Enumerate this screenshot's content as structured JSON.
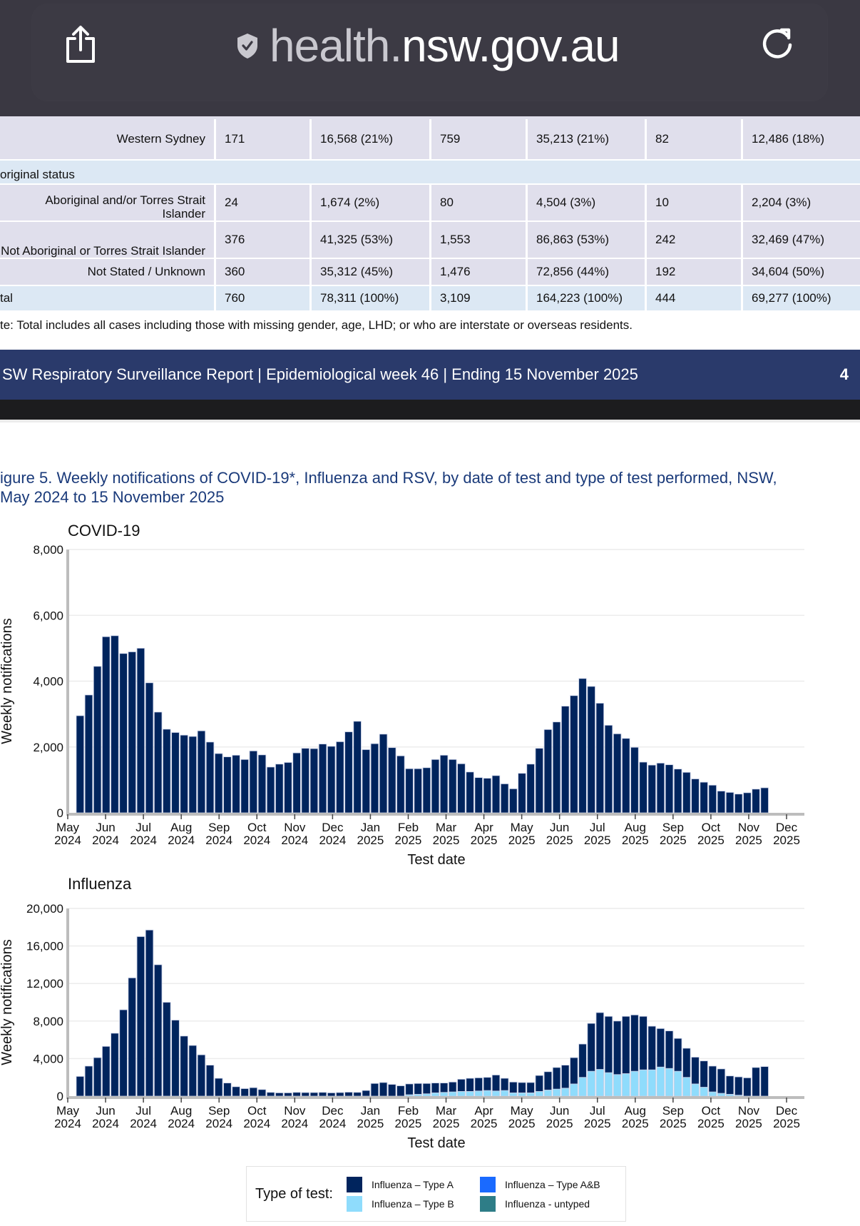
{
  "browser": {
    "url_prefix": "health.",
    "url_domain": "nsw.gov.au",
    "icons": {
      "share": "share-icon",
      "security": "shield-check-icon",
      "reload": "reload-icon"
    }
  },
  "table": {
    "rows": [
      {
        "type": "data",
        "label": "Western Sydney",
        "cols": [
          "171",
          "16,568 (21%)",
          "759",
          "35,213 (21%)",
          "82",
          "12,486 (18%)"
        ]
      },
      {
        "type": "group",
        "label": "original status"
      },
      {
        "type": "data",
        "label": "Aboriginal and/or Torres Strait Islander",
        "cols": [
          "24",
          "1,674 (2%)",
          "80",
          "4,504 (3%)",
          "10",
          "2,204 (3%)"
        ]
      },
      {
        "type": "data",
        "label": "Not Aboriginal or Torres Strait Islander",
        "cols": [
          "376",
          "41,325 (53%)",
          "1,553",
          "86,863 (53%)",
          "242",
          "32,469 (47%)"
        ]
      },
      {
        "type": "data",
        "label": "Not Stated / Unknown",
        "cols": [
          "360",
          "35,312 (45%)",
          "1,476",
          "72,856 (44%)",
          "192",
          "34,604 (50%)"
        ]
      },
      {
        "type": "total",
        "label": "tal",
        "cols": [
          "760",
          "78,311 (100%)",
          "3,109",
          "164,223 (100%)",
          "444",
          "69,277 (100%)"
        ]
      }
    ],
    "note": "te: Total includes all cases including those with missing gender, age, LHD; or who are interstate or overseas residents."
  },
  "report_footer": {
    "title": "SW Respiratory Surveillance Report | Epidemiological week 46 | Ending 15 November 2025",
    "page": "4"
  },
  "figure": {
    "title_line1": "igure 5. Weekly notifications of COVID-19*, Influenza and RSV, by date of test and type of test performed, NSW,",
    "title_line2": " May 2024 to 15 November 2025"
  },
  "chart_data": [
    {
      "type": "bar",
      "title": "COVID-19",
      "xlabel": "Test date",
      "ylabel": "Weekly notifications",
      "ylim": [
        0,
        8000
      ],
      "yticks": [
        "0",
        "2,000",
        "4,000",
        "6,000",
        "8,000"
      ],
      "xticks": [
        "May\n2024",
        "Jun\n2024",
        "Jul\n2024",
        "Aug\n2024",
        "Sep\n2024",
        "Oct\n2024",
        "Nov\n2024",
        "Dec\n2024",
        "Jan\n2025",
        "Feb\n2025",
        "Mar\n2025",
        "Apr\n2025",
        "May\n2025",
        "Jun\n2025",
        "Jul\n2025",
        "Aug\n2025",
        "Sep\n2025",
        "Oct\n2025",
        "Nov\n2025",
        "Dec\n2025"
      ],
      "grid": true,
      "color": "#00245d",
      "values": [
        2950,
        3580,
        4450,
        5350,
        5380,
        4840,
        4890,
        5000,
        3950,
        3060,
        2540,
        2440,
        2360,
        2320,
        2490,
        2150,
        1800,
        1700,
        1750,
        1620,
        1880,
        1760,
        1390,
        1480,
        1530,
        1820,
        1960,
        1950,
        2090,
        2020,
        2160,
        2460,
        2780,
        1920,
        2100,
        2390,
        1980,
        1730,
        1340,
        1340,
        1370,
        1620,
        1750,
        1620,
        1490,
        1240,
        1070,
        1050,
        1130,
        880,
        730,
        1200,
        1480,
        1960,
        2530,
        2760,
        3240,
        3560,
        4080,
        3840,
        3330,
        2660,
        2400,
        2260,
        1990,
        1540,
        1450,
        1510,
        1460,
        1330,
        1230,
        1030,
        930,
        840,
        660,
        620,
        570,
        610,
        720,
        760
      ]
    },
    {
      "type": "bar",
      "stacked": true,
      "title": "Influenza",
      "xlabel": "Test date",
      "ylabel": "Weekly notifications",
      "ylim": [
        0,
        20000
      ],
      "yticks": [
        "0",
        "4,000",
        "8,000",
        "12,000",
        "16,000",
        "20,000"
      ],
      "xticks": [
        "May\n2024",
        "Jun\n2024",
        "Jul\n2024",
        "Aug\n2024",
        "Sep\n2024",
        "Oct\n2024",
        "Nov\n2024",
        "Dec\n2024",
        "Jan\n2025",
        "Feb\n2025",
        "Mar\n2025",
        "Apr\n2025",
        "May\n2025",
        "Jun\n2025",
        "Jul\n2025",
        "Aug\n2025",
        "Sep\n2025",
        "Oct\n2025",
        "Nov\n2025",
        "Dec\n2025"
      ],
      "grid": true,
      "legend_title": "Type of test:",
      "legend_position": "bottom",
      "series": [
        {
          "name": "Influenza – Type A",
          "color": "#00245d",
          "values": [
            2100,
            3200,
            4100,
            5300,
            6700,
            9200,
            12600,
            17000,
            17700,
            14000,
            10000,
            8100,
            6400,
            5400,
            4400,
            3300,
            1900,
            1400,
            1000,
            800,
            900,
            700,
            400,
            350,
            350,
            400,
            380,
            380,
            400,
            350,
            380,
            420,
            400,
            600,
            1350,
            1450,
            1250,
            1100,
            1150,
            1150,
            1100,
            1050,
            1000,
            1050,
            1300,
            1400,
            1400,
            1400,
            1700,
            1300,
            1150,
            1100,
            1100,
            1700,
            1950,
            2300,
            2450,
            2800,
            3550,
            5100,
            6050,
            6000,
            5700,
            6100,
            6000,
            5700,
            4650,
            4100,
            4000,
            3500,
            3100,
            2850,
            2800,
            2750,
            2600,
            1950,
            1950,
            1950,
            3050,
            3150
          ]
        },
        {
          "name": "Influenza – Type B",
          "color": "#8fdcfc",
          "values": [
            0,
            0,
            0,
            0,
            0,
            0,
            0,
            0,
            0,
            0,
            0,
            0,
            0,
            0,
            0,
            0,
            0,
            0,
            0,
            0,
            0,
            0,
            0,
            0,
            0,
            0,
            0,
            0,
            0,
            0,
            0,
            0,
            0,
            0,
            0,
            0,
            0,
            0,
            150,
            200,
            250,
            350,
            400,
            450,
            500,
            500,
            550,
            600,
            550,
            600,
            350,
            350,
            350,
            500,
            650,
            750,
            850,
            1300,
            2000,
            2650,
            2850,
            2500,
            2300,
            2400,
            2650,
            2800,
            2800,
            3100,
            2950,
            2650,
            2000,
            1300,
            950,
            450,
            300,
            200,
            100,
            0,
            0,
            0
          ]
        },
        {
          "name": "Influenza – Type A&B",
          "color": "#1a6aff",
          "values": []
        },
        {
          "name": "Influenza - untyped",
          "color": "#2e7d87",
          "values": []
        }
      ]
    }
  ]
}
